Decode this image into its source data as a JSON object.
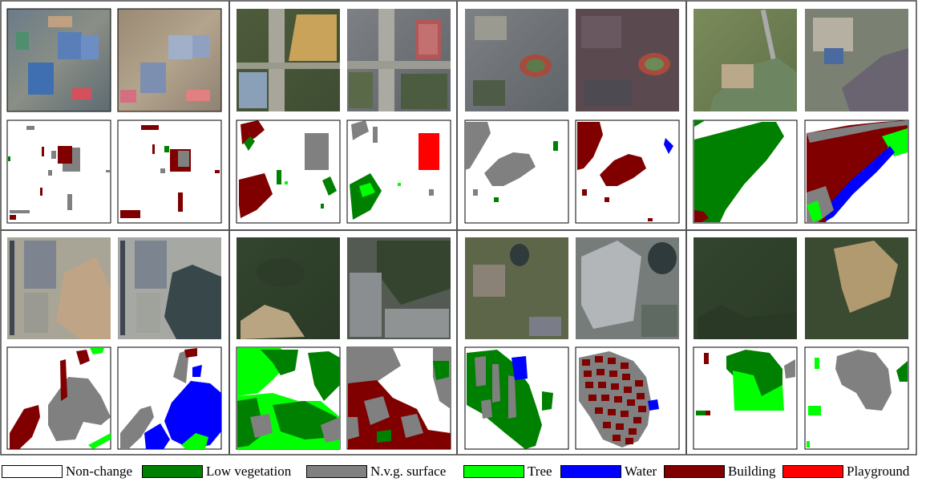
{
  "legend": {
    "items": [
      {
        "label": "Non-change",
        "color": "#ffffff"
      },
      {
        "label": "Low vegetation",
        "color": "#008000"
      },
      {
        "label": "N.v.g. surface",
        "color": "#808080"
      },
      {
        "label": "Tree",
        "color": "#00ff00"
      },
      {
        "label": "Water",
        "color": "#0000ff"
      },
      {
        "label": "Building",
        "color": "#800000"
      },
      {
        "label": "Playground",
        "color": "#ff0000"
      }
    ]
  },
  "panels": [
    {
      "row": "top",
      "column": 1,
      "satellite_tone": "urban-industrial"
    },
    {
      "row": "top",
      "column": 2,
      "satellite_tone": "road-fields"
    },
    {
      "row": "top",
      "column": 3,
      "satellite_tone": "residential-stadium"
    },
    {
      "row": "top",
      "column": 4,
      "satellite_tone": "grassland-construction"
    },
    {
      "row": "bottom",
      "column": 1,
      "satellite_tone": "rooftops-water"
    },
    {
      "row": "bottom",
      "column": 2,
      "satellite_tone": "forest-housing"
    },
    {
      "row": "bottom",
      "column": 3,
      "satellite_tone": "suburb-housing"
    },
    {
      "row": "bottom",
      "column": 4,
      "satellite_tone": "forest-clearing"
    }
  ]
}
